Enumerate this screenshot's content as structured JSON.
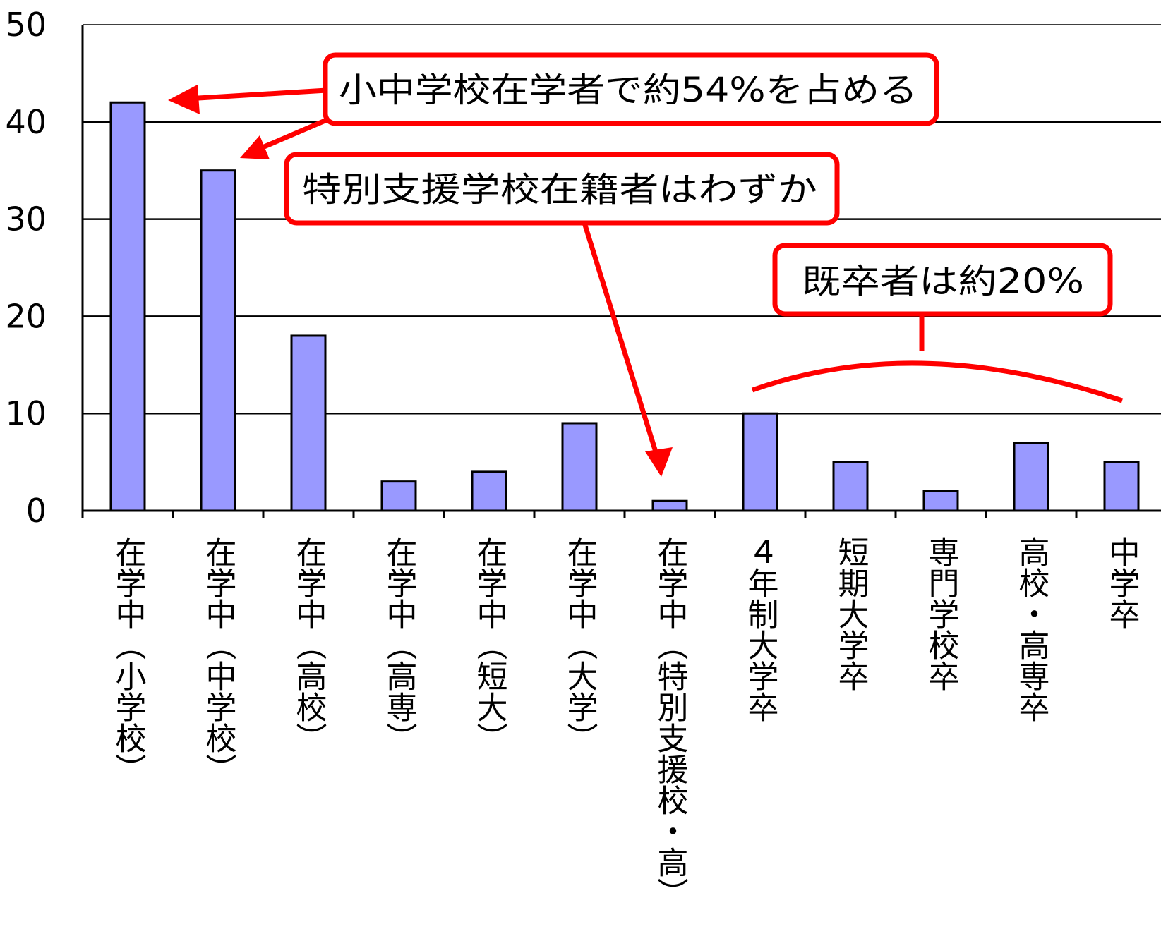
{
  "chart_data": {
    "type": "bar",
    "categories": [
      "在学中（小学校）",
      "在学中（中学校）",
      "在学中（高校）",
      "在学中（高専）",
      "在学中（短大）",
      "在学中（大学）",
      "在学中（特別支援校・高）",
      "４年制大学卒",
      "短期大学卒",
      "専門学校卒",
      "高校・高専卒",
      "中学卒"
    ],
    "values": [
      42,
      35,
      18,
      3,
      4,
      9,
      1,
      10,
      5,
      2,
      7,
      5
    ],
    "y_ticks": [
      "0",
      "10",
      "20",
      "30",
      "40",
      "50"
    ],
    "ylim": [
      0,
      50
    ],
    "grid": true,
    "bar_color": "#9999ff",
    "annotations": [
      {
        "id": "elementary-junior",
        "text": "小中学校在学者で約54%を占める"
      },
      {
        "id": "special-support",
        "text": "特別支援学校在籍者はわずか"
      },
      {
        "id": "graduates",
        "text": "既卒者は約20%"
      }
    ],
    "annotation_color": "#ff0000"
  }
}
